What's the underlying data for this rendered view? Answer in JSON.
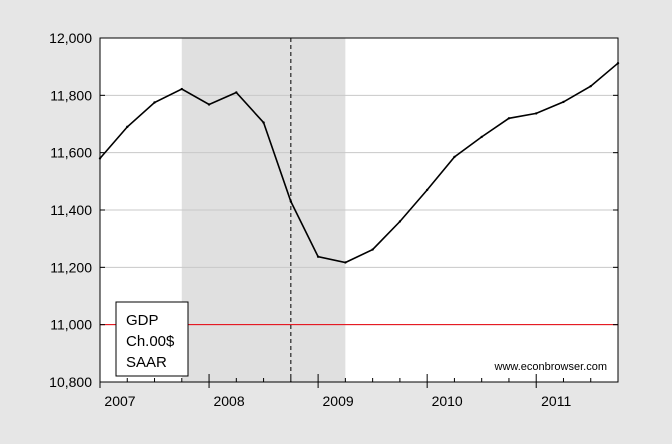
{
  "chart_data": {
    "type": "line",
    "title": "",
    "xlabel": "",
    "ylabel": "",
    "ylim": [
      10800,
      12000
    ],
    "xlim": [
      2007.0,
      2011.75
    ],
    "y_ticks": [
      10800,
      11000,
      11200,
      11400,
      11600,
      11800,
      12000
    ],
    "y_tick_labels": [
      "10,800",
      "11,000",
      "11,200",
      "11,400",
      "11,600",
      "11,800",
      "12,000"
    ],
    "x_ticks": [
      2007,
      2008,
      2009,
      2010,
      2011
    ],
    "x_tick_labels": [
      "2007",
      "2008",
      "2009",
      "2010",
      "2011"
    ],
    "grid": true,
    "series": [
      {
        "name": "GDP",
        "color": "#000000",
        "x": [
          2007.0,
          2007.25,
          2007.5,
          2007.75,
          2008.0,
          2008.25,
          2008.5,
          2008.75,
          2009.0,
          2009.25,
          2009.5,
          2009.75,
          2010.0,
          2010.25,
          2010.5,
          2010.75,
          2011.0,
          2011.25,
          2011.5,
          2011.75
        ],
        "values": [
          11580,
          11690,
          11775,
          11822,
          11768,
          11810,
          11705,
          11430,
          11237,
          11217,
          11262,
          11360,
          11470,
          11585,
          11655,
          11720,
          11737,
          11777,
          11832,
          11912
        ]
      }
    ],
    "reference_line": {
      "y": 11000,
      "color": "#e8000b"
    },
    "recession_shading": {
      "x_start": 2007.75,
      "x_end": 2009.25,
      "color": "#e0e0e0"
    },
    "vertical_marker": {
      "x": 2008.75,
      "style": "dashed"
    },
    "legend": {
      "lines": [
        "GDP",
        "Ch.00$",
        "SAAR"
      ],
      "placement": "bottom-left"
    },
    "annotation": "www.econbrowser.com"
  }
}
